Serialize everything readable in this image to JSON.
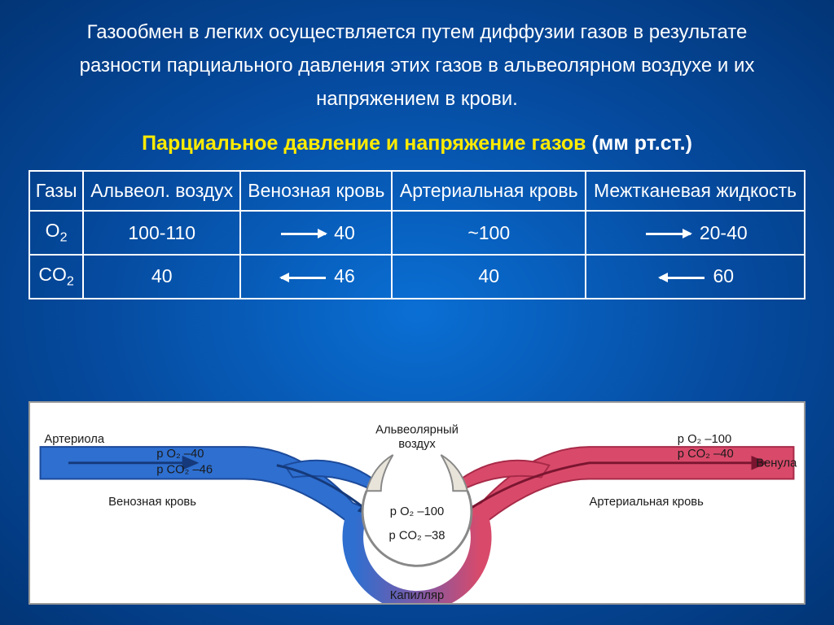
{
  "intro_text": "Газообмен в легких осуществляется путем диффузии газов в результате разности парциального давления этих газов в альвеолярном воздухе и их напряжением в крови.",
  "subtitle_yellow": "Парциальное давление и напряжение газов ",
  "subtitle_white": "(мм рт.ст.)",
  "table": {
    "headers": [
      "Газы",
      "Альвеол. воздух",
      "Венозная кровь",
      "Артериальная кровь",
      "Межтканевая жидкость"
    ],
    "rows": [
      {
        "gas": "O",
        "sub": "2",
        "vals": [
          "100-110",
          "40",
          "~100",
          "20-40"
        ],
        "dirs": [
          "right",
          "none",
          "right"
        ]
      },
      {
        "gas": "CO",
        "sub": "2",
        "vals": [
          "40",
          "46",
          "40",
          "60"
        ],
        "dirs": [
          "left",
          "none",
          "left"
        ]
      }
    ]
  },
  "diagram": {
    "arteriole": "Артериола",
    "venule": "Венула",
    "venous_blood": "Венозная кровь",
    "arterial_blood": "Артериальная кровь",
    "capillary": "Капилляр",
    "alveolar_air": "Альвеолярный воздух",
    "left_po2": "p O₂ –40",
    "left_pco2": "p CO₂ –46",
    "center_po2": "p O₂ –100",
    "center_pco2": "p CO₂ –38",
    "right_po2": "p O₂ –100",
    "right_pco2": "p CO₂ –40",
    "colors": {
      "venous": "#2e6fd0",
      "venous_dark": "#1c4a9a",
      "arterial": "#d94a6a",
      "arterial_dark": "#a82a48",
      "alveolus": "#e8e4da",
      "alveolus_border": "#888"
    }
  }
}
